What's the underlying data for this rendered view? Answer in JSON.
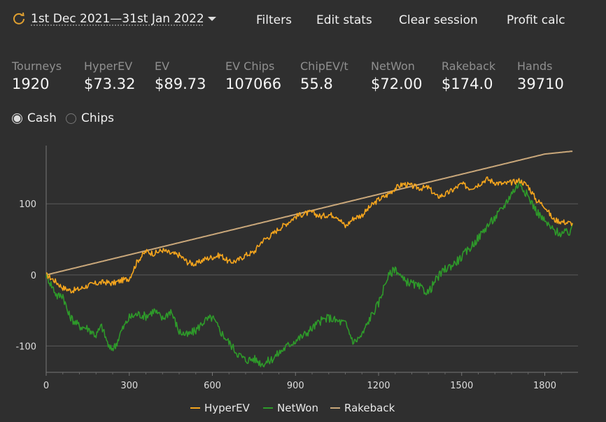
{
  "header": {
    "date_range": "1st Dec 2021—31st Jan 2022",
    "menu": [
      "Filters",
      "Edit stats",
      "Clear session",
      "Profit calc"
    ]
  },
  "stats": [
    {
      "label": "Tourneys",
      "value": "1920"
    },
    {
      "label": "HyperEV",
      "value": "$73.32"
    },
    {
      "label": "EV",
      "value": "$89.73"
    },
    {
      "label": "EV Chips",
      "value": "107066"
    },
    {
      "label": "ChipEV/t",
      "value": "55.8"
    },
    {
      "label": "NetWon",
      "value": "$72.00"
    },
    {
      "label": "Rakeback",
      "value": "$174.0"
    },
    {
      "label": "Hands",
      "value": "39710"
    }
  ],
  "mode": {
    "options": [
      "Cash",
      "Chips"
    ],
    "selected": "Cash"
  },
  "colors": {
    "accent": "#e0a030",
    "background": "#2f2f2f",
    "hyperev": "#f5a51d",
    "netwon": "#2e9a2a",
    "rakeback": "#c9a77a"
  },
  "chart_data": {
    "type": "line",
    "xlim": [
      0,
      1920
    ],
    "ylim": [
      -137,
      178
    ],
    "x_ticks": [
      0,
      300,
      600,
      900,
      1200,
      1500,
      1800
    ],
    "y_ticks": [
      -100,
      0,
      100
    ],
    "grid": true,
    "legend_position": "bottom",
    "series": [
      {
        "name": "HyperEV",
        "color": "#f5a51d",
        "points": [
          [
            0,
            0
          ],
          [
            30,
            -8
          ],
          [
            60,
            -18
          ],
          [
            90,
            -22
          ],
          [
            120,
            -20
          ],
          [
            150,
            -15
          ],
          [
            180,
            -12
          ],
          [
            210,
            -10
          ],
          [
            240,
            -12
          ],
          [
            270,
            -8
          ],
          [
            300,
            -5
          ],
          [
            330,
            20
          ],
          [
            360,
            33
          ],
          [
            390,
            30
          ],
          [
            420,
            35
          ],
          [
            450,
            30
          ],
          [
            480,
            28
          ],
          [
            510,
            18
          ],
          [
            540,
            15
          ],
          [
            570,
            22
          ],
          [
            600,
            25
          ],
          [
            630,
            28
          ],
          [
            660,
            18
          ],
          [
            690,
            20
          ],
          [
            720,
            28
          ],
          [
            750,
            32
          ],
          [
            780,
            48
          ],
          [
            810,
            55
          ],
          [
            840,
            65
          ],
          [
            870,
            73
          ],
          [
            900,
            82
          ],
          [
            930,
            86
          ],
          [
            960,
            88
          ],
          [
            990,
            82
          ],
          [
            1020,
            85
          ],
          [
            1050,
            83
          ],
          [
            1080,
            68
          ],
          [
            1110,
            80
          ],
          [
            1140,
            84
          ],
          [
            1170,
            96
          ],
          [
            1200,
            106
          ],
          [
            1230,
            112
          ],
          [
            1260,
            122
          ],
          [
            1290,
            128
          ],
          [
            1320,
            125
          ],
          [
            1350,
            122
          ],
          [
            1380,
            123
          ],
          [
            1410,
            110
          ],
          [
            1440,
            113
          ],
          [
            1470,
            120
          ],
          [
            1500,
            128
          ],
          [
            1530,
            122
          ],
          [
            1560,
            127
          ],
          [
            1590,
            135
          ],
          [
            1620,
            130
          ],
          [
            1650,
            128
          ],
          [
            1680,
            130
          ],
          [
            1710,
            133
          ],
          [
            1740,
            125
          ],
          [
            1770,
            105
          ],
          [
            1800,
            97
          ],
          [
            1830,
            78
          ],
          [
            1860,
            75
          ],
          [
            1890,
            73
          ],
          [
            1900,
            73
          ]
        ]
      },
      {
        "name": "NetWon",
        "color": "#2e9a2a",
        "points": [
          [
            0,
            0
          ],
          [
            20,
            -15
          ],
          [
            40,
            -30
          ],
          [
            60,
            -28
          ],
          [
            80,
            -55
          ],
          [
            100,
            -65
          ],
          [
            120,
            -72
          ],
          [
            150,
            -75
          ],
          [
            180,
            -85
          ],
          [
            200,
            -72
          ],
          [
            230,
            -105
          ],
          [
            250,
            -100
          ],
          [
            270,
            -80
          ],
          [
            300,
            -60
          ],
          [
            330,
            -55
          ],
          [
            360,
            -58
          ],
          [
            390,
            -50
          ],
          [
            420,
            -62
          ],
          [
            450,
            -50
          ],
          [
            480,
            -80
          ],
          [
            510,
            -85
          ],
          [
            540,
            -78
          ],
          [
            570,
            -65
          ],
          [
            600,
            -60
          ],
          [
            630,
            -80
          ],
          [
            660,
            -95
          ],
          [
            690,
            -110
          ],
          [
            720,
            -120
          ],
          [
            750,
            -118
          ],
          [
            780,
            -125
          ],
          [
            810,
            -120
          ],
          [
            840,
            -110
          ],
          [
            870,
            -100
          ],
          [
            900,
            -92
          ],
          [
            930,
            -85
          ],
          [
            960,
            -75
          ],
          [
            990,
            -65
          ],
          [
            1020,
            -60
          ],
          [
            1050,
            -65
          ],
          [
            1080,
            -68
          ],
          [
            1110,
            -95
          ],
          [
            1140,
            -85
          ],
          [
            1170,
            -60
          ],
          [
            1200,
            -40
          ],
          [
            1230,
            -5
          ],
          [
            1260,
            10
          ],
          [
            1290,
            -8
          ],
          [
            1320,
            -12
          ],
          [
            1350,
            -18
          ],
          [
            1380,
            -25
          ],
          [
            1410,
            -5
          ],
          [
            1440,
            8
          ],
          [
            1470,
            15
          ],
          [
            1500,
            25
          ],
          [
            1530,
            38
          ],
          [
            1560,
            52
          ],
          [
            1590,
            68
          ],
          [
            1620,
            80
          ],
          [
            1650,
            95
          ],
          [
            1680,
            115
          ],
          [
            1710,
            130
          ],
          [
            1740,
            110
          ],
          [
            1770,
            90
          ],
          [
            1800,
            75
          ],
          [
            1830,
            63
          ],
          [
            1860,
            58
          ],
          [
            1890,
            60
          ],
          [
            1900,
            72
          ]
        ]
      },
      {
        "name": "Rakeback",
        "color": "#c9a77a",
        "points": [
          [
            0,
            0
          ],
          [
            1800,
            170
          ],
          [
            1900,
            174
          ]
        ]
      }
    ]
  }
}
